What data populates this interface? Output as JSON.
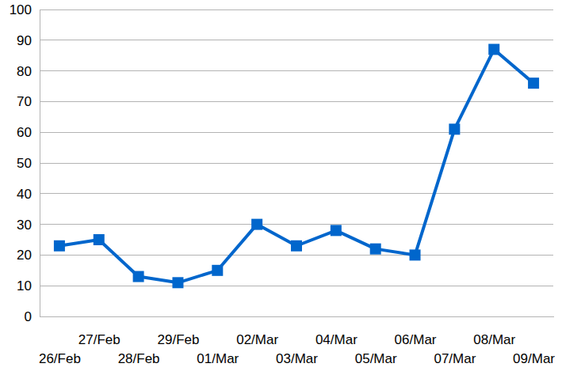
{
  "chart_data": {
    "type": "line",
    "categories": [
      "26/Feb",
      "27/Feb",
      "28/Feb",
      "29/Feb",
      "01/Mar",
      "02/Mar",
      "03/Mar",
      "04/Mar",
      "05/Mar",
      "06/Mar",
      "07/Mar",
      "08/Mar",
      "09/Mar"
    ],
    "values": [
      23,
      25,
      13,
      11,
      15,
      30,
      23,
      28,
      22,
      20,
      61,
      87,
      76
    ],
    "color": "#0066cc",
    "marker": "square",
    "ylim": [
      0,
      100
    ],
    "yticks": [
      0,
      10,
      20,
      30,
      40,
      50,
      60,
      70,
      80,
      90,
      100
    ],
    "grid": true
  }
}
